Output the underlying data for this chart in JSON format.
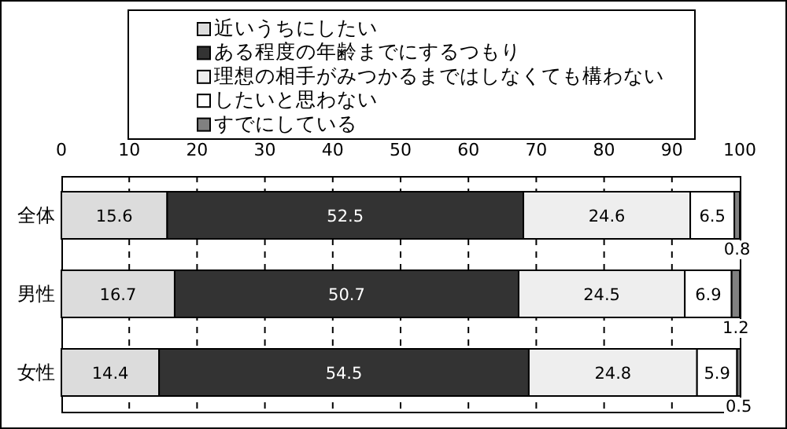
{
  "chart_data": {
    "type": "bar",
    "orientation": "horizontal",
    "stacked": true,
    "categories": [
      "全体",
      "男性",
      "女性"
    ],
    "series": [
      {
        "name": "近いうちにしたい",
        "color": "#dcdcdc",
        "values": [
          15.6,
          16.7,
          14.4
        ]
      },
      {
        "name": "ある程度の年齢までにするつもり",
        "color": "#333333",
        "values": [
          52.5,
          50.7,
          54.5
        ]
      },
      {
        "name": "理想の相手がみつかるまではしなくても構わない",
        "color": "#eeeeee",
        "values": [
          24.6,
          24.5,
          24.8
        ]
      },
      {
        "name": "したいと思わない",
        "color": "#ffffff",
        "values": [
          6.5,
          6.9,
          5.9
        ]
      },
      {
        "name": "すでにしている",
        "color": "#808080",
        "values": [
          0.8,
          1.2,
          0.5
        ]
      }
    ],
    "xlim": [
      0,
      100
    ],
    "xticks": [
      0,
      10,
      20,
      30,
      40,
      50,
      60,
      70,
      80,
      90,
      100
    ],
    "grid": "x",
    "legend": "top",
    "data_labels": true
  }
}
